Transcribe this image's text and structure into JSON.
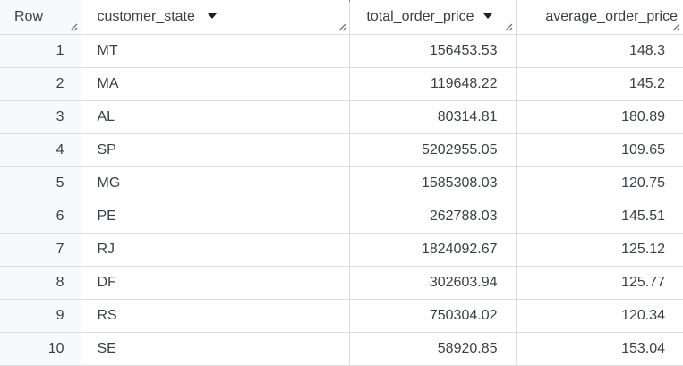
{
  "table": {
    "columns": [
      {
        "label": "Row"
      },
      {
        "label": "customer_state"
      },
      {
        "label": "total_order_price"
      },
      {
        "label": "average_order_price"
      }
    ],
    "rows": [
      {
        "row": "1",
        "customer_state": "MT",
        "total_order_price": "156453.53",
        "average_order_price": "148.3"
      },
      {
        "row": "2",
        "customer_state": "MA",
        "total_order_price": "119648.22",
        "average_order_price": "145.2"
      },
      {
        "row": "3",
        "customer_state": "AL",
        "total_order_price": "80314.81",
        "average_order_price": "180.89"
      },
      {
        "row": "4",
        "customer_state": "SP",
        "total_order_price": "5202955.05",
        "average_order_price": "109.65"
      },
      {
        "row": "5",
        "customer_state": "MG",
        "total_order_price": "1585308.03",
        "average_order_price": "120.75"
      },
      {
        "row": "6",
        "customer_state": "PE",
        "total_order_price": "262788.03",
        "average_order_price": "145.51"
      },
      {
        "row": "7",
        "customer_state": "RJ",
        "total_order_price": "1824092.67",
        "average_order_price": "125.12"
      },
      {
        "row": "8",
        "customer_state": "DF",
        "total_order_price": "302603.94",
        "average_order_price": "125.77"
      },
      {
        "row": "9",
        "customer_state": "RS",
        "total_order_price": "750304.02",
        "average_order_price": "120.34"
      },
      {
        "row": "10",
        "customer_state": "SE",
        "total_order_price": "58920.85",
        "average_order_price": "153.04"
      }
    ]
  },
  "colors": {
    "border": "#dadce0",
    "row_number_bg": "#f8f9fa",
    "text": "#3c4043",
    "accent": "#4285f4"
  }
}
